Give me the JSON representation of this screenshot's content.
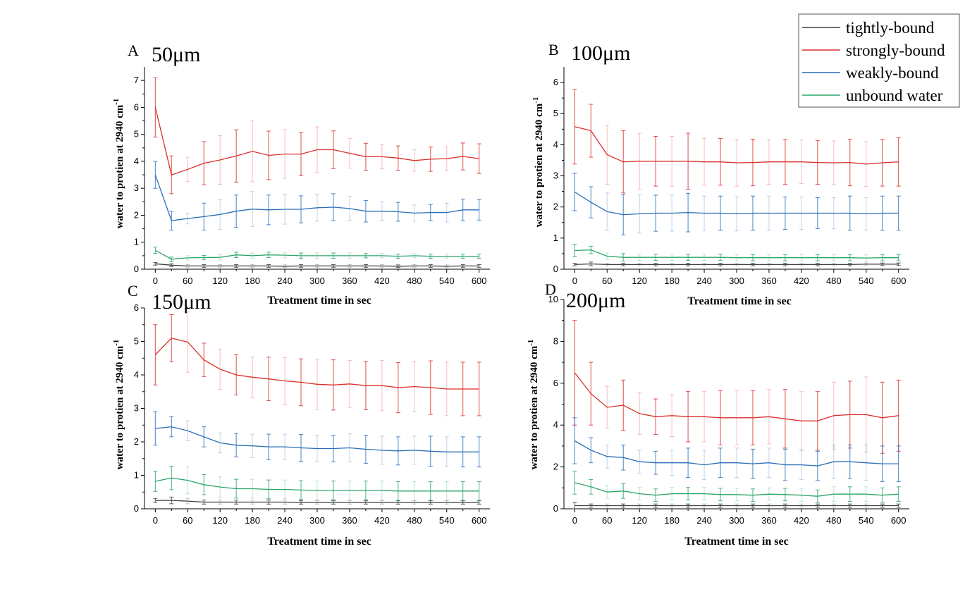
{
  "legend": [
    {
      "label": "tightly-bound",
      "color": "#404040"
    },
    {
      "label": "strongly-bound",
      "color": "#d9302c"
    },
    {
      "label": "weakly-bound",
      "color": "#2a6fb8"
    },
    {
      "label": "unbound water",
      "color": "#2aa56a"
    }
  ],
  "chart_data": [
    {
      "type": "line",
      "panel": "A",
      "title": "50μm",
      "xlabel": "Treatment time in sec",
      "ylabel_main": "water to protien at 2940 cm",
      "ylabel_sup": "-1",
      "xlim": [
        -20,
        620
      ],
      "ylim": [
        0,
        7.5
      ],
      "xticks": [
        0,
        60,
        120,
        180,
        240,
        300,
        360,
        420,
        480,
        540,
        600
      ],
      "yticks": [
        0,
        1,
        2,
        3,
        4,
        5,
        6,
        7
      ],
      "x": [
        0,
        30,
        60,
        90,
        120,
        150,
        180,
        210,
        240,
        270,
        300,
        330,
        360,
        390,
        420,
        450,
        480,
        510,
        540,
        570,
        600
      ],
      "series": [
        {
          "name": "tightly-bound",
          "values": [
            0.2,
            0.15,
            0.12,
            0.12,
            0.12,
            0.12,
            0.12,
            0.12,
            0.11,
            0.12,
            0.12,
            0.12,
            0.12,
            0.12,
            0.12,
            0.11,
            0.12,
            0.12,
            0.11,
            0.12,
            0.12
          ],
          "errors": [
            0.05,
            0.05,
            0.05,
            0.05,
            0.05,
            0.05,
            0.05,
            0.05,
            0.05,
            0.05,
            0.05,
            0.05,
            0.05,
            0.05,
            0.05,
            0.05,
            0.05,
            0.05,
            0.05,
            0.05,
            0.05
          ]
        },
        {
          "name": "strongly-bound",
          "values": [
            6.0,
            3.5,
            3.7,
            3.93,
            4.05,
            4.2,
            4.37,
            4.22,
            4.27,
            4.27,
            4.43,
            4.43,
            4.3,
            4.17,
            4.17,
            4.12,
            4.03,
            4.08,
            4.1,
            4.18,
            4.1
          ],
          "errors": [
            1.1,
            0.7,
            0.45,
            0.8,
            0.9,
            0.97,
            1.13,
            0.9,
            0.9,
            0.8,
            0.85,
            0.7,
            0.55,
            0.5,
            0.45,
            0.45,
            0.4,
            0.45,
            0.45,
            0.5,
            0.55
          ]
        },
        {
          "name": "weakly-bound",
          "values": [
            3.5,
            1.8,
            1.88,
            1.95,
            2.03,
            2.15,
            2.23,
            2.2,
            2.22,
            2.22,
            2.28,
            2.3,
            2.25,
            2.15,
            2.15,
            2.13,
            2.08,
            2.1,
            2.1,
            2.2,
            2.2
          ],
          "errors": [
            0.5,
            0.35,
            0.2,
            0.5,
            0.55,
            0.6,
            0.65,
            0.55,
            0.55,
            0.5,
            0.5,
            0.5,
            0.45,
            0.4,
            0.35,
            0.35,
            0.3,
            0.3,
            0.35,
            0.4,
            0.38
          ]
        },
        {
          "name": "unbound water",
          "values": [
            0.7,
            0.37,
            0.42,
            0.43,
            0.44,
            0.53,
            0.5,
            0.53,
            0.52,
            0.5,
            0.5,
            0.5,
            0.5,
            0.5,
            0.5,
            0.48,
            0.5,
            0.48,
            0.48,
            0.48,
            0.48
          ],
          "errors": [
            0.12,
            0.08,
            0.08,
            0.08,
            0.1,
            0.1,
            0.1,
            0.1,
            0.1,
            0.1,
            0.1,
            0.1,
            0.1,
            0.08,
            0.08,
            0.08,
            0.08,
            0.08,
            0.08,
            0.08,
            0.08
          ]
        }
      ]
    },
    {
      "type": "line",
      "panel": "B",
      "title": "100μm",
      "xlabel": "Treatment time in sec",
      "ylabel_main": "water to protien at 2940 cm",
      "ylabel_sup": "-1",
      "xlim": [
        -20,
        620
      ],
      "ylim": [
        0,
        6.5
      ],
      "xticks": [
        0,
        60,
        120,
        180,
        240,
        300,
        360,
        420,
        480,
        540,
        600
      ],
      "yticks": [
        0,
        1,
        2,
        3,
        4,
        5,
        6
      ],
      "x": [
        0,
        30,
        60,
        90,
        120,
        150,
        180,
        210,
        240,
        270,
        300,
        330,
        360,
        390,
        420,
        450,
        480,
        510,
        540,
        570,
        600
      ],
      "series": [
        {
          "name": "tightly-bound",
          "values": [
            0.15,
            0.17,
            0.15,
            0.15,
            0.15,
            0.15,
            0.15,
            0.15,
            0.15,
            0.15,
            0.15,
            0.15,
            0.15,
            0.15,
            0.15,
            0.15,
            0.15,
            0.15,
            0.16,
            0.16,
            0.16
          ],
          "errors": [
            0.04,
            0.06,
            0.04,
            0.04,
            0.04,
            0.04,
            0.04,
            0.04,
            0.04,
            0.04,
            0.04,
            0.04,
            0.04,
            0.04,
            0.04,
            0.04,
            0.04,
            0.04,
            0.04,
            0.04,
            0.04
          ]
        },
        {
          "name": "strongly-bound",
          "values": [
            4.58,
            4.45,
            3.68,
            3.45,
            3.47,
            3.47,
            3.47,
            3.47,
            3.45,
            3.45,
            3.42,
            3.43,
            3.45,
            3.45,
            3.45,
            3.43,
            3.42,
            3.43,
            3.38,
            3.42,
            3.45
          ],
          "errors": [
            1.2,
            0.85,
            0.95,
            1.0,
            0.9,
            0.8,
            0.8,
            0.9,
            0.75,
            0.75,
            0.75,
            0.75,
            0.72,
            0.72,
            0.7,
            0.7,
            0.7,
            0.75,
            0.72,
            0.75,
            0.78
          ]
        },
        {
          "name": "weakly-bound",
          "values": [
            2.48,
            2.15,
            1.85,
            1.75,
            1.78,
            1.8,
            1.8,
            1.82,
            1.8,
            1.8,
            1.78,
            1.8,
            1.8,
            1.8,
            1.8,
            1.8,
            1.8,
            1.8,
            1.78,
            1.8,
            1.8
          ],
          "errors": [
            0.6,
            0.5,
            0.6,
            0.65,
            0.62,
            0.58,
            0.58,
            0.62,
            0.55,
            0.55,
            0.55,
            0.55,
            0.55,
            0.52,
            0.52,
            0.5,
            0.5,
            0.55,
            0.52,
            0.55,
            0.55
          ]
        },
        {
          "name": "unbound water",
          "values": [
            0.6,
            0.62,
            0.42,
            0.38,
            0.38,
            0.38,
            0.38,
            0.38,
            0.38,
            0.38,
            0.37,
            0.37,
            0.37,
            0.37,
            0.37,
            0.37,
            0.37,
            0.37,
            0.36,
            0.37,
            0.37
          ],
          "errors": [
            0.2,
            0.12,
            0.1,
            0.12,
            0.1,
            0.1,
            0.1,
            0.1,
            0.1,
            0.1,
            0.1,
            0.1,
            0.1,
            0.1,
            0.1,
            0.1,
            0.1,
            0.1,
            0.1,
            0.1,
            0.1
          ]
        }
      ]
    },
    {
      "type": "line",
      "panel": "C",
      "title": "150μm",
      "xlabel": "Treatment time in sec",
      "ylabel_main": "water to protien at 2940 cm",
      "ylabel_sup": "-1",
      "xlim": [
        -20,
        620
      ],
      "ylim": [
        0,
        6
      ],
      "xticks": [
        0,
        60,
        120,
        180,
        240,
        300,
        360,
        420,
        480,
        540,
        600
      ],
      "yticks": [
        0,
        1,
        2,
        3,
        4,
        5,
        6
      ],
      "x": [
        0,
        30,
        60,
        90,
        120,
        150,
        180,
        210,
        240,
        270,
        300,
        330,
        360,
        390,
        420,
        450,
        480,
        510,
        540,
        570,
        600
      ],
      "series": [
        {
          "name": "tightly-bound",
          "values": [
            0.25,
            0.25,
            0.23,
            0.2,
            0.2,
            0.2,
            0.2,
            0.2,
            0.2,
            0.19,
            0.19,
            0.19,
            0.19,
            0.19,
            0.19,
            0.19,
            0.19,
            0.19,
            0.19,
            0.19,
            0.19
          ],
          "errors": [
            0.06,
            0.1,
            0.08,
            0.06,
            0.06,
            0.06,
            0.06,
            0.06,
            0.06,
            0.05,
            0.05,
            0.05,
            0.05,
            0.05,
            0.05,
            0.05,
            0.05,
            0.05,
            0.05,
            0.05,
            0.05
          ]
        },
        {
          "name": "strongly-bound",
          "values": [
            4.6,
            5.1,
            4.98,
            4.45,
            4.17,
            4.0,
            3.93,
            3.88,
            3.82,
            3.78,
            3.72,
            3.7,
            3.73,
            3.68,
            3.68,
            3.62,
            3.65,
            3.62,
            3.58,
            3.58,
            3.58
          ],
          "errors": [
            0.9,
            0.7,
            0.9,
            0.5,
            0.6,
            0.6,
            0.6,
            0.65,
            0.7,
            0.7,
            0.75,
            0.75,
            0.7,
            0.72,
            0.75,
            0.75,
            0.75,
            0.8,
            0.8,
            0.8,
            0.8
          ]
        },
        {
          "name": "weakly-bound",
          "values": [
            2.4,
            2.45,
            2.33,
            2.15,
            1.97,
            1.9,
            1.88,
            1.85,
            1.85,
            1.82,
            1.8,
            1.8,
            1.82,
            1.78,
            1.75,
            1.73,
            1.75,
            1.72,
            1.7,
            1.7,
            1.7
          ],
          "errors": [
            0.5,
            0.3,
            0.3,
            0.3,
            0.3,
            0.35,
            0.35,
            0.38,
            0.38,
            0.4,
            0.4,
            0.4,
            0.42,
            0.42,
            0.42,
            0.42,
            0.42,
            0.45,
            0.45,
            0.45,
            0.45
          ]
        },
        {
          "name": "unbound water",
          "values": [
            0.82,
            0.92,
            0.85,
            0.72,
            0.65,
            0.6,
            0.6,
            0.58,
            0.58,
            0.56,
            0.55,
            0.55,
            0.55,
            0.55,
            0.55,
            0.53,
            0.53,
            0.53,
            0.53,
            0.53,
            0.53
          ],
          "errors": [
            0.3,
            0.35,
            0.4,
            0.3,
            0.3,
            0.28,
            0.28,
            0.28,
            0.28,
            0.28,
            0.28,
            0.28,
            0.28,
            0.28,
            0.28,
            0.28,
            0.28,
            0.28,
            0.28,
            0.28,
            0.28
          ]
        }
      ]
    },
    {
      "type": "line",
      "panel": "D",
      "title": "200μm",
      "xlabel": "Treatment time in sec",
      "ylabel_main": "water to protien at 2940 cm",
      "ylabel_sup": "-1",
      "xlim": [
        -20,
        620
      ],
      "ylim": [
        0,
        10
      ],
      "xticks": [
        0,
        60,
        120,
        180,
        240,
        300,
        360,
        420,
        480,
        540,
        600
      ],
      "yticks": [
        0,
        2,
        4,
        6,
        8,
        10
      ],
      "x": [
        0,
        30,
        60,
        90,
        120,
        150,
        180,
        210,
        240,
        270,
        300,
        330,
        360,
        390,
        420,
        450,
        480,
        510,
        540,
        570,
        600
      ],
      "series": [
        {
          "name": "tightly-bound",
          "values": [
            0.15,
            0.15,
            0.15,
            0.15,
            0.15,
            0.15,
            0.15,
            0.15,
            0.15,
            0.15,
            0.15,
            0.15,
            0.15,
            0.15,
            0.15,
            0.15,
            0.15,
            0.15,
            0.15,
            0.15,
            0.15
          ],
          "errors": [
            0.15,
            0.08,
            0.08,
            0.08,
            0.08,
            0.08,
            0.08,
            0.08,
            0.08,
            0.08,
            0.08,
            0.08,
            0.08,
            0.08,
            0.08,
            0.08,
            0.08,
            0.08,
            0.08,
            0.08,
            0.08
          ]
        },
        {
          "name": "strongly-bound",
          "values": [
            6.5,
            5.5,
            4.85,
            4.95,
            4.55,
            4.4,
            4.45,
            4.4,
            4.4,
            4.35,
            4.35,
            4.35,
            4.4,
            4.3,
            4.2,
            4.2,
            4.45,
            4.5,
            4.5,
            4.35,
            4.45
          ],
          "errors": [
            2.5,
            1.5,
            1.0,
            1.2,
            1.0,
            0.85,
            1.0,
            1.2,
            1.2,
            1.3,
            1.3,
            1.3,
            1.3,
            1.4,
            1.4,
            1.4,
            1.6,
            1.6,
            1.8,
            1.7,
            1.7
          ]
        },
        {
          "name": "weakly-bound",
          "values": [
            3.25,
            2.8,
            2.5,
            2.45,
            2.25,
            2.2,
            2.2,
            2.2,
            2.1,
            2.2,
            2.2,
            2.15,
            2.2,
            2.1,
            2.1,
            2.05,
            2.25,
            2.25,
            2.2,
            2.15,
            2.15
          ],
          "errors": [
            1.1,
            0.6,
            0.55,
            0.6,
            0.55,
            0.55,
            0.6,
            0.7,
            0.7,
            0.7,
            0.7,
            0.7,
            0.7,
            0.75,
            0.7,
            0.7,
            0.8,
            0.8,
            0.85,
            0.85,
            0.85
          ]
        },
        {
          "name": "unbound water",
          "values": [
            1.25,
            1.05,
            0.8,
            0.85,
            0.72,
            0.65,
            0.72,
            0.72,
            0.72,
            0.68,
            0.68,
            0.65,
            0.7,
            0.68,
            0.65,
            0.6,
            0.7,
            0.7,
            0.7,
            0.65,
            0.7
          ],
          "errors": [
            0.55,
            0.35,
            0.3,
            0.35,
            0.3,
            0.3,
            0.3,
            0.3,
            0.3,
            0.3,
            0.3,
            0.3,
            0.3,
            0.3,
            0.3,
            0.3,
            0.35,
            0.35,
            0.35,
            0.35,
            0.35
          ]
        }
      ]
    }
  ]
}
